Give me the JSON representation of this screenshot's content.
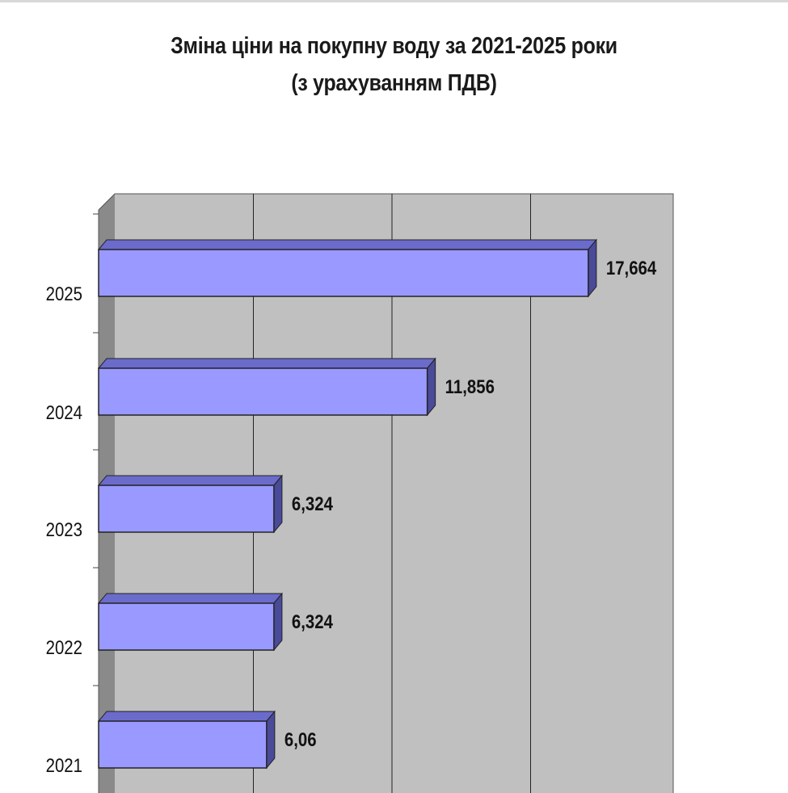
{
  "chart_data": {
    "type": "bar",
    "orientation": "horizontal",
    "title": "Зміна ціни на покупну воду за 2021-2025 роки",
    "subtitle": "(з урахуванням ПДВ)",
    "categories": [
      "2021",
      "2022",
      "2023",
      "2024",
      "2025"
    ],
    "values": [
      6.06,
      6.324,
      6.324,
      11.856,
      17.664
    ],
    "value_labels": [
      "6,06",
      "6,324",
      "6,324",
      "11,856",
      "17,664"
    ],
    "xlim": [
      0,
      20
    ],
    "grid": true,
    "legend": "none",
    "colors": {
      "bar_front": "#9999ff",
      "bar_top": "#6b6bcc",
      "bar_side": "#4a4a9a",
      "plot_wall": "#c0c0c0",
      "plot_side_wall": "#8a8a8a"
    }
  }
}
